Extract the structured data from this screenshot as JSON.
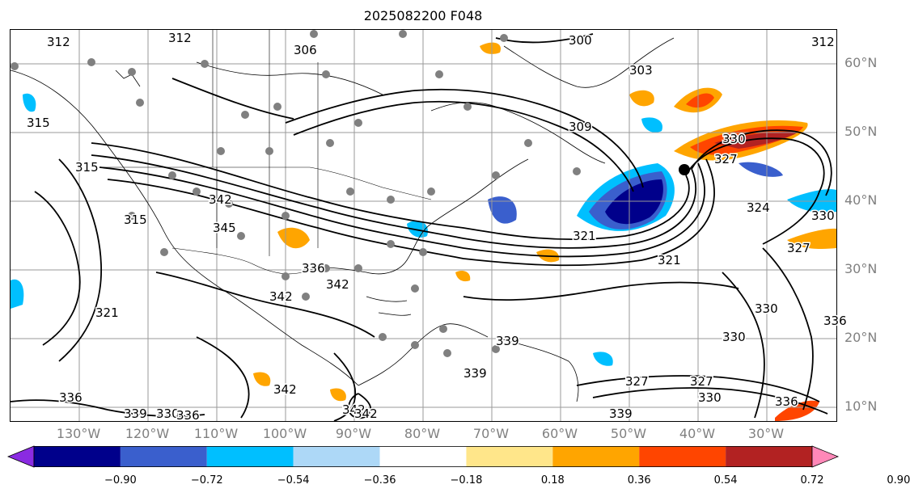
{
  "title": "2025082200 F048",
  "lat_labels": [
    "60°N",
    "50°N",
    "40°N",
    "30°N",
    "20°N",
    "10°N"
  ],
  "lon_labels": [
    "130°W",
    "120°W",
    "110°W",
    "100°W",
    "90°W",
    "80°W",
    "70°W",
    "60°W",
    "50°W",
    "40°W",
    "30°W"
  ],
  "contour_labels": [
    "312",
    "312",
    "306",
    "300",
    "303",
    "315",
    "312",
    "315",
    "315",
    "309",
    "330",
    "327",
    "321",
    "324",
    "342",
    "345",
    "336",
    "321",
    "327",
    "330",
    "330",
    "330",
    "336",
    "321",
    "342",
    "336",
    "342",
    "339",
    "330",
    "339",
    "327",
    "330",
    "336",
    "327",
    "339",
    "342",
    "342",
    "339",
    "336",
    "342"
  ],
  "colorbar": {
    "ticks": [
      "−0.90",
      "−0.72",
      "−0.54",
      "−0.36",
      "−0.18",
      "0.18",
      "0.36",
      "0.54",
      "0.72",
      "0.90"
    ],
    "colors": [
      "#8a2be2",
      "#00008b",
      "#3a5fcd",
      "#00bfff",
      "#add8f7",
      "#ffffff",
      "#ffe68a",
      "#ffa500",
      "#ff4500",
      "#b22222",
      "#ff88b8"
    ],
    "extend": "both"
  }
}
